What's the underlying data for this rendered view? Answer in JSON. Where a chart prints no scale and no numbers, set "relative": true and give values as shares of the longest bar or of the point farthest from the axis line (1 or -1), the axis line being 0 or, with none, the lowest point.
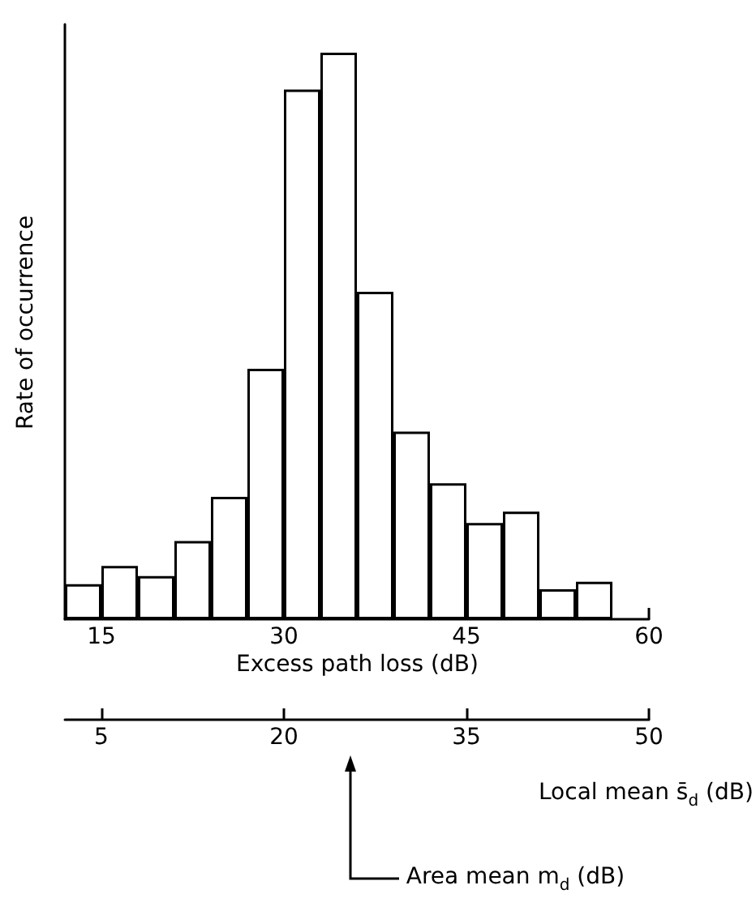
{
  "chart_data": {
    "type": "bar",
    "relative": true,
    "x": [
      13.5,
      16.5,
      19.5,
      22.5,
      25.5,
      28.5,
      31.5,
      34.5,
      37.5,
      40.5,
      43.5,
      46.5,
      49.5,
      52.5,
      55.5
    ],
    "values": [
      0.062,
      0.094,
      0.076,
      0.138,
      0.216,
      0.442,
      0.935,
      1,
      0.578,
      0.331,
      0.24,
      0.17,
      0.19,
      0.053,
      0.066
    ],
    "color": "#ffffff",
    "xlim": [
      12,
      60
    ],
    "xticks": [
      15,
      30,
      45,
      60
    ],
    "x2lim": [
      2,
      50
    ],
    "x2ticks": [
      5,
      20,
      35,
      50
    ],
    "xlabel": "Excess path loss (dB)",
    "ylabel": "Rate of occurrence",
    "x2label": "Local mean s̄$_{d}$ (dB)",
    "annotations": [
      "Area mean m$_{d}$ (dB)"
    ],
    "grid": false
  }
}
